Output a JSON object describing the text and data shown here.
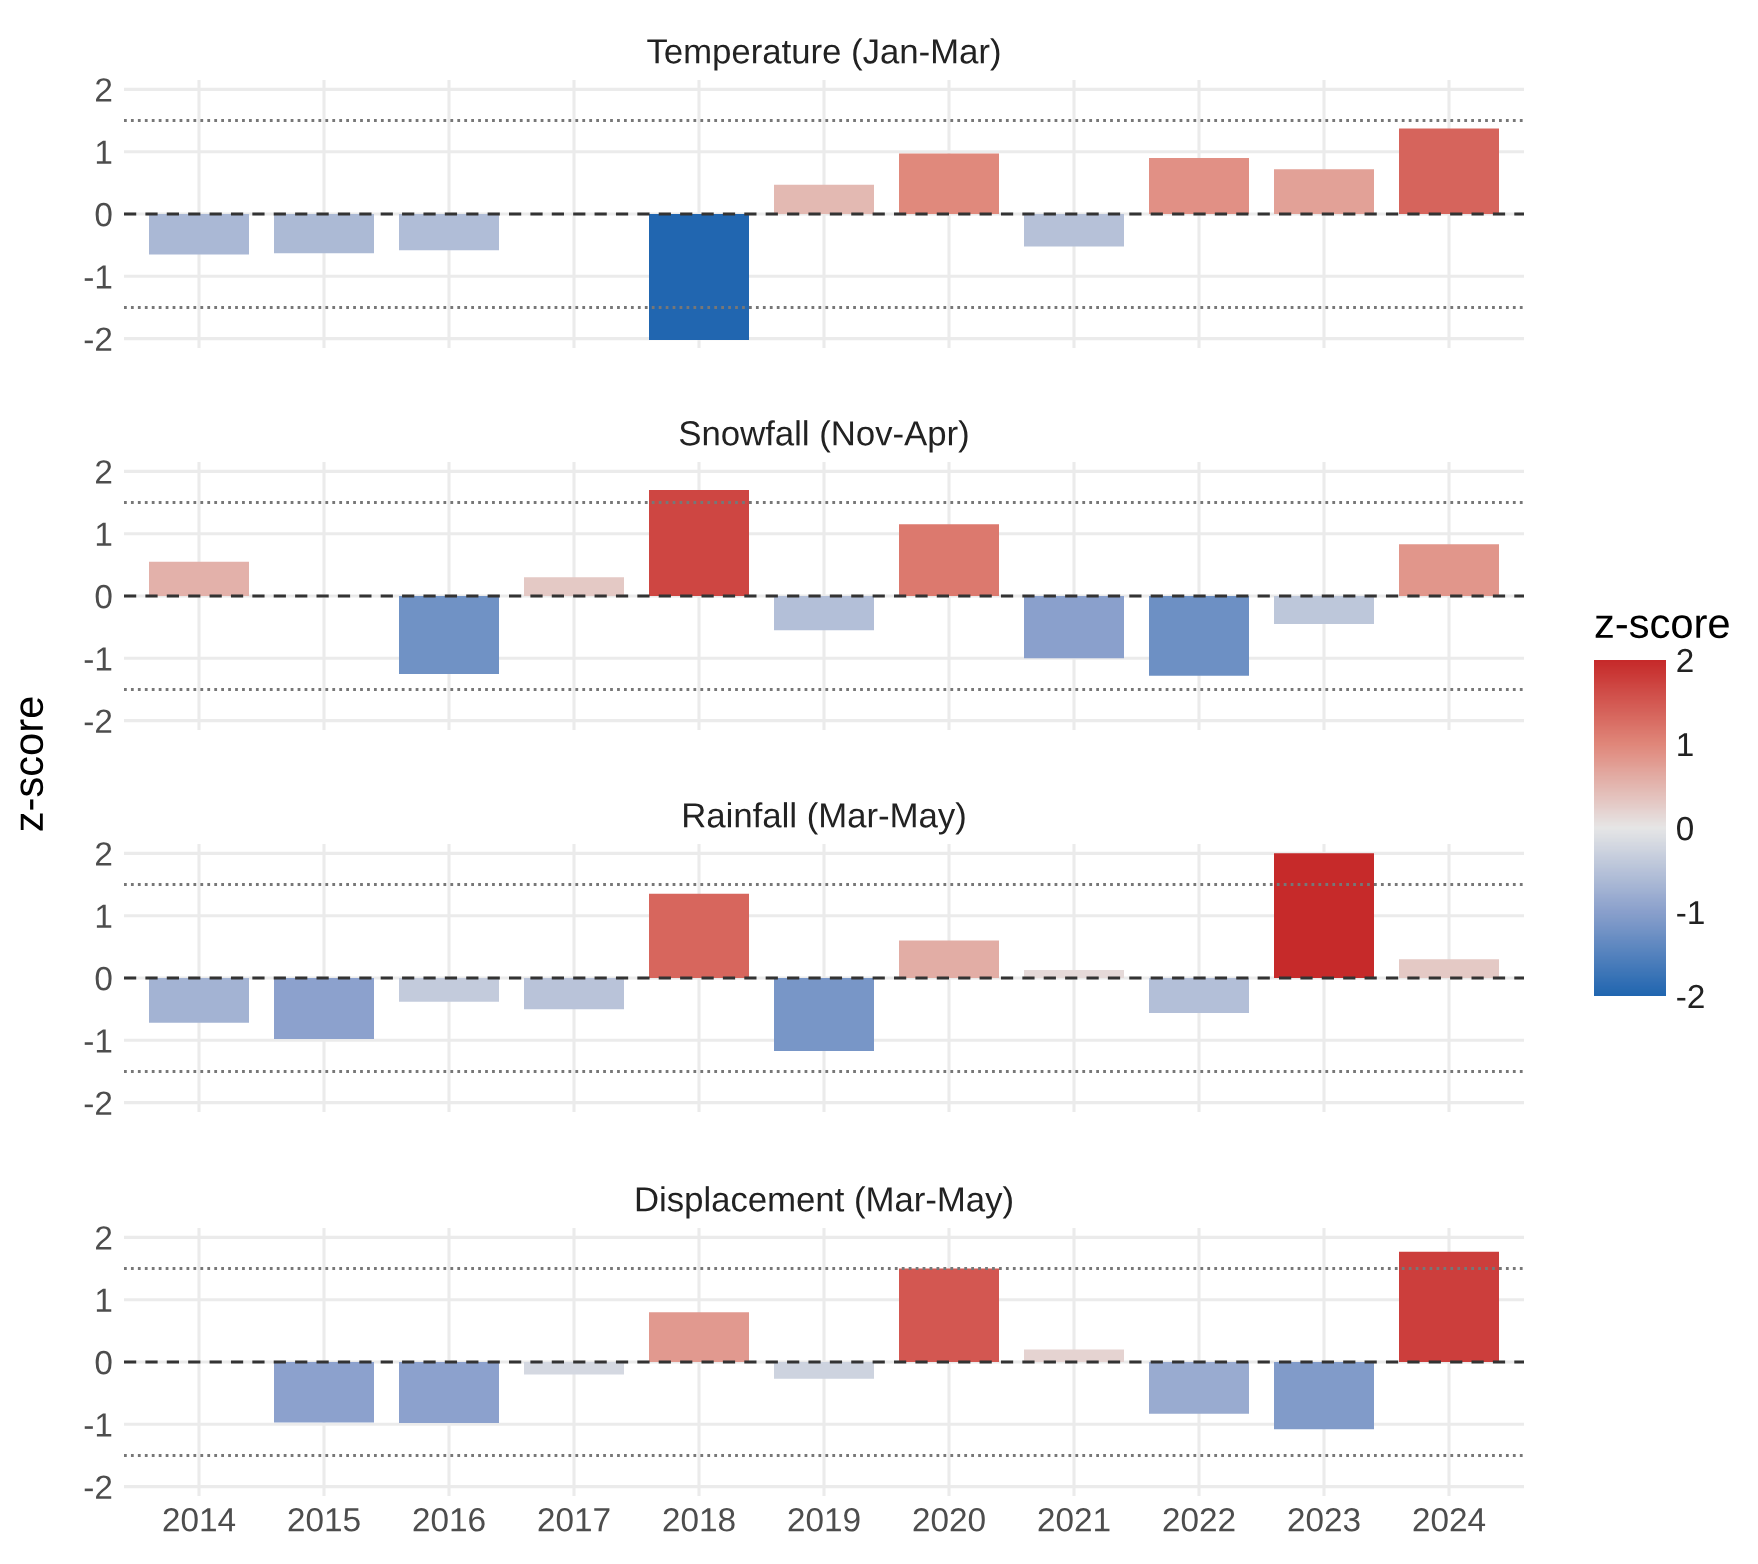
{
  "chart_data": [
    {
      "type": "bar",
      "title": "Temperature (Jan-Mar)",
      "categories": [
        "2014",
        "2015",
        "2016",
        "2017",
        "2018",
        "2019",
        "2020",
        "2021",
        "2022",
        "2023",
        "2024"
      ],
      "values": [
        -0.65,
        -0.63,
        -0.58,
        null,
        -2.02,
        0.47,
        0.97,
        -0.52,
        0.9,
        0.72,
        1.37
      ],
      "ylim": [
        -2.15,
        2.15
      ],
      "yticks": [
        -2,
        -1,
        0,
        1,
        2
      ],
      "grid": true,
      "tick_labels": "y",
      "clim": [
        -2,
        2
      ],
      "cticks": [
        -2,
        -1,
        0,
        1,
        2
      ],
      "clabel": "z-score",
      "ref_lines": [
        {
          "axis": "y",
          "value": 0,
          "line_style": "dashed",
          "color": "#333333"
        },
        {
          "axis": "y",
          "value": 1.5,
          "line_style": "dotted",
          "color": "#777777"
        },
        {
          "axis": "y",
          "value": -1.5,
          "line_style": "dotted",
          "color": "#777777"
        }
      ]
    },
    {
      "type": "bar",
      "title": "Snowfall (Nov-Apr)",
      "categories": [
        "2014",
        "2015",
        "2016",
        "2017",
        "2018",
        "2019",
        "2020",
        "2021",
        "2022",
        "2023",
        "2024"
      ],
      "values": [
        0.55,
        0.01,
        -1.25,
        0.3,
        1.7,
        -0.55,
        1.15,
        -1.0,
        -1.28,
        -0.45,
        0.83
      ],
      "ylim": [
        -2.15,
        2.15
      ],
      "yticks": [
        -2,
        -1,
        0,
        1,
        2
      ],
      "grid": true,
      "tick_labels": "y",
      "ylabel": "z-score",
      "ref_lines": [
        {
          "axis": "y",
          "value": 0,
          "line_style": "dashed",
          "color": "#333333"
        },
        {
          "axis": "y",
          "value": 1.5,
          "line_style": "dotted",
          "color": "#777777"
        },
        {
          "axis": "y",
          "value": -1.5,
          "line_style": "dotted",
          "color": "#777777"
        }
      ]
    },
    {
      "type": "bar",
      "title": "Rainfall (Mar-May)",
      "categories": [
        "2014",
        "2015",
        "2016",
        "2017",
        "2018",
        "2019",
        "2020",
        "2021",
        "2022",
        "2023",
        "2024"
      ],
      "values": [
        -0.72,
        -0.98,
        -0.38,
        -0.5,
        1.35,
        -1.17,
        0.6,
        0.13,
        -0.56,
        2.0,
        0.3
      ],
      "ylim": [
        -2.15,
        2.15
      ],
      "yticks": [
        -2,
        -1,
        0,
        1,
        2
      ],
      "grid": true,
      "tick_labels": "y",
      "ref_lines": [
        {
          "axis": "y",
          "value": 0,
          "line_style": "dashed",
          "color": "#333333"
        },
        {
          "axis": "y",
          "value": 1.5,
          "line_style": "dotted",
          "color": "#777777"
        },
        {
          "axis": "y",
          "value": -1.5,
          "line_style": "dotted",
          "color": "#777777"
        }
      ]
    },
    {
      "type": "bar",
      "title": "Displacement (Mar-May)",
      "categories": [
        "2014",
        "2015",
        "2016",
        "2017",
        "2018",
        "2019",
        "2020",
        "2021",
        "2022",
        "2023",
        "2024"
      ],
      "values": [
        null,
        -0.97,
        -0.98,
        -0.2,
        0.8,
        -0.27,
        1.5,
        0.2,
        -0.83,
        -1.08,
        1.77
      ],
      "ylim": [
        -2.15,
        2.15
      ],
      "yticks": [
        -2,
        -1,
        0,
        1,
        2
      ],
      "grid": true,
      "ref_lines": [
        {
          "axis": "y",
          "value": 0,
          "line_style": "dashed",
          "color": "#333333"
        },
        {
          "axis": "y",
          "value": 1.5,
          "line_style": "dotted",
          "color": "#777777"
        },
        {
          "axis": "y",
          "value": -1.5,
          "line_style": "dotted",
          "color": "#777777"
        }
      ]
    }
  ]
}
